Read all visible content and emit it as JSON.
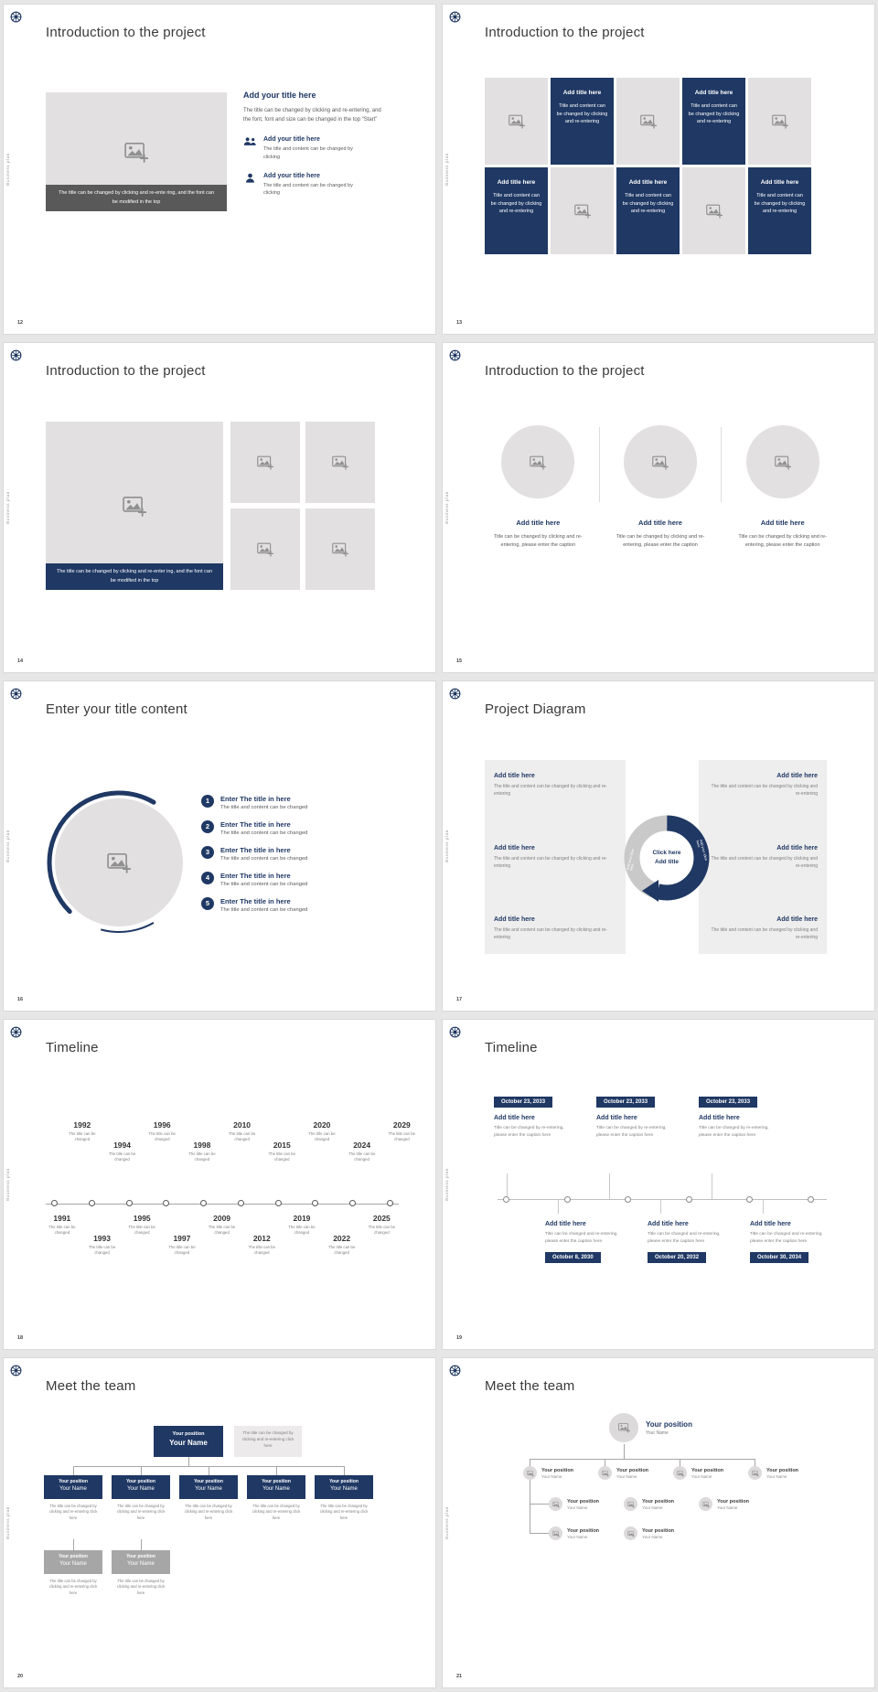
{
  "page": {
    "brand_vertical": "Business plan",
    "accent_color": "#1f3864",
    "placeholder_color": "#e2e0e0"
  },
  "icons": [
    "compass-logo",
    "image-placeholder",
    "people",
    "person"
  ],
  "slides": {
    "s12": {
      "page_num": "12",
      "title": "Introduction to the project",
      "image_caption": "The title can be changed by clicking and re-ente ring, and the font can be modified in the top",
      "heading": "Add your title here",
      "body": "The title can be changed by clicking and re-entering, and the font, font and size can be changed in the top “Start”",
      "items": [
        {
          "heading": "Add your title here",
          "body": "The title and content can be changed by clicking"
        },
        {
          "heading": "Add your title here",
          "body": "The title and content can be changed by clicking"
        }
      ]
    },
    "s13": {
      "page_num": "13",
      "title": "Introduction to the project",
      "cells": [
        {
          "heading": "Add title here",
          "body": "Title and content can be changed by clicking and re-entering"
        },
        {
          "heading": "Add title here",
          "body": "Title and content can be changed by clicking and re-entering"
        },
        {
          "heading": "Add title here",
          "body": "Title and content can be changed by clicking and re-entering"
        },
        {
          "heading": "Add title here",
          "body": "Title and content can be changed by clicking and re-entering"
        },
        {
          "heading": "Add title here",
          "body": "Title and content can be changed by clicking and re-entering"
        }
      ]
    },
    "s14": {
      "page_num": "14",
      "title": "Introduction to the project",
      "image_caption": "The title can be changed by clicking and re-enter ing, and the font can be modified in the top"
    },
    "s15": {
      "page_num": "15",
      "title": "Introduction to the project",
      "columns": [
        {
          "heading": "Add title here",
          "body": "Title can be changed by clicking and re-entering, please enter the caption"
        },
        {
          "heading": "Add title here",
          "body": "Title can be changed by clicking and re-entering, please enter the caption"
        },
        {
          "heading": "Add title here",
          "body": "Title can be changed by clicking and re-entering, please enter the caption"
        }
      ]
    },
    "s16": {
      "page_num": "16",
      "title": "Enter your title content",
      "items": [
        {
          "num": "1",
          "heading": "Enter The title in here",
          "body": "The title and content can be changed"
        },
        {
          "num": "2",
          "heading": "Enter The title in here",
          "body": "The title and content can be changed"
        },
        {
          "num": "3",
          "heading": "Enter The title in here",
          "body": "The title and content can be changed"
        },
        {
          "num": "4",
          "heading": "Enter The title in here",
          "body": "The title and content can be changed"
        },
        {
          "num": "5",
          "heading": "Enter The title in here",
          "body": "The title and content can be changed"
        }
      ]
    },
    "s17": {
      "page_num": "17",
      "title": "Project Diagram",
      "center_line1": "Click here",
      "center_line2": "Add title",
      "ring_label": "Add your idea here",
      "left_items": [
        {
          "heading": "Add title here",
          "body": "The title and content can be changed by clicking and re-entering"
        },
        {
          "heading": "Add title here",
          "body": "The title and content can be changed by clicking and re-entering"
        },
        {
          "heading": "Add title here",
          "body": "The title and content can be changed by clicking and re-entering"
        }
      ],
      "right_items": [
        {
          "heading": "Add title here",
          "body": "The title and content can be changed by clicking and re-entering"
        },
        {
          "heading": "Add title here",
          "body": "The title and content can be changed by clicking and re-entering"
        },
        {
          "heading": "Add title here",
          "body": "The title and content can be changed by clicking and re-entering"
        }
      ]
    },
    "s18": {
      "page_num": "18",
      "title": "Timeline",
      "top": [
        {
          "year": "1992",
          "caption": "The title can be changed"
        },
        {
          "year": "1994",
          "caption": "The title can be changed"
        },
        {
          "year": "1996",
          "caption": "The title can be changed"
        },
        {
          "year": "1998",
          "caption": "The title can be changed"
        },
        {
          "year": "2010",
          "caption": "The title can be changed"
        },
        {
          "year": "2015",
          "caption": "The title can be changed"
        },
        {
          "year": "2020",
          "caption": "The title can be changed"
        },
        {
          "year": "2024",
          "caption": "The title can be changed"
        },
        {
          "year": "2029",
          "caption": "The title can be changed"
        }
      ],
      "bottom": [
        {
          "year": "1991",
          "caption": "The title can be changed"
        },
        {
          "year": "1993",
          "caption": "The title can be changed"
        },
        {
          "year": "1995",
          "caption": "The title can be changed"
        },
        {
          "year": "1997",
          "caption": "The title can be changed"
        },
        {
          "year": "2009",
          "caption": "The title can be changed"
        },
        {
          "year": "2012",
          "caption": "The title can be changed"
        },
        {
          "year": "2019",
          "caption": "The title can be changed"
        },
        {
          "year": "2022",
          "caption": "The title can be changed"
        },
        {
          "year": "2025",
          "caption": "The title can be changed"
        }
      ]
    },
    "s19": {
      "page_num": "19",
      "title": "Timeline",
      "top_items": [
        {
          "date": "October 23, 2033",
          "heading": "Add title here",
          "body": "Title can be changed by re-entering, please enter the caption here"
        },
        {
          "date": "October 23, 2033",
          "heading": "Add title here",
          "body": "Title can be changed by re-entering, please enter the caption here"
        },
        {
          "date": "October 23, 2033",
          "heading": "Add title here",
          "body": "Title can be changed by re-entering, please enter the caption here"
        }
      ],
      "bottom_items": [
        {
          "date": "October 8, 2030",
          "heading": "Add title here",
          "body": "Title can be changed and re-entering, please enter the caption here"
        },
        {
          "date": "October 20, 2032",
          "heading": "Add title here",
          "body": "Title can be changed and re-entering, please enter the caption here"
        },
        {
          "date": "October 30, 2034",
          "heading": "Add title here",
          "body": "Title can be changed and re-entering, please enter the caption here"
        }
      ]
    },
    "s20": {
      "page_num": "20",
      "title": "Meet the team",
      "root": {
        "position": "Your position",
        "name": "Your Name"
      },
      "root_note": "The title can be changed by clicking and re-entering click here",
      "level2": [
        {
          "position": "Your position",
          "name": "Your Name",
          "caption": "The title can be changed by clicking and re-entering click here"
        },
        {
          "position": "Your position",
          "name": "Your Name",
          "caption": "The title can be changed by clicking and re-entering click here"
        },
        {
          "position": "Your position",
          "name": "Your Name",
          "caption": "The title can be changed by clicking and re-entering click here"
        },
        {
          "position": "Your position",
          "name": "Your Name",
          "caption": "The title can be changed by clicking and re-entering click here"
        },
        {
          "position": "Your position",
          "name": "Your Name",
          "caption": "The title can be changed by clicking and re-entering click here"
        }
      ],
      "level3": [
        {
          "position": "Your position",
          "name": "Your Name",
          "caption": "The title can be changed by clicking and re-entering click here"
        },
        {
          "position": "Your position",
          "name": "Your Name",
          "caption": "The title can be changed by clicking and re-entering click here"
        }
      ]
    },
    "s21": {
      "page_num": "21",
      "title": "Meet the team",
      "root": {
        "position": "Your position",
        "name": "Your Name"
      },
      "row2": [
        {
          "position": "Your position",
          "name": "Your Name"
        },
        {
          "position": "Your position",
          "name": "Your Name"
        },
        {
          "position": "Your position",
          "name": "Your Name"
        },
        {
          "position": "Your position",
          "name": "Your Name"
        }
      ],
      "row3": [
        {
          "position": "Your position",
          "name": "Your Name"
        },
        {
          "position": "Your position",
          "name": "Your Name"
        },
        {
          "position": "Your position",
          "name": "Your Name"
        }
      ],
      "row4": [
        {
          "position": "Your position",
          "name": "Your Name"
        },
        {
          "position": "Your position",
          "name": "Your Name"
        }
      ]
    }
  }
}
